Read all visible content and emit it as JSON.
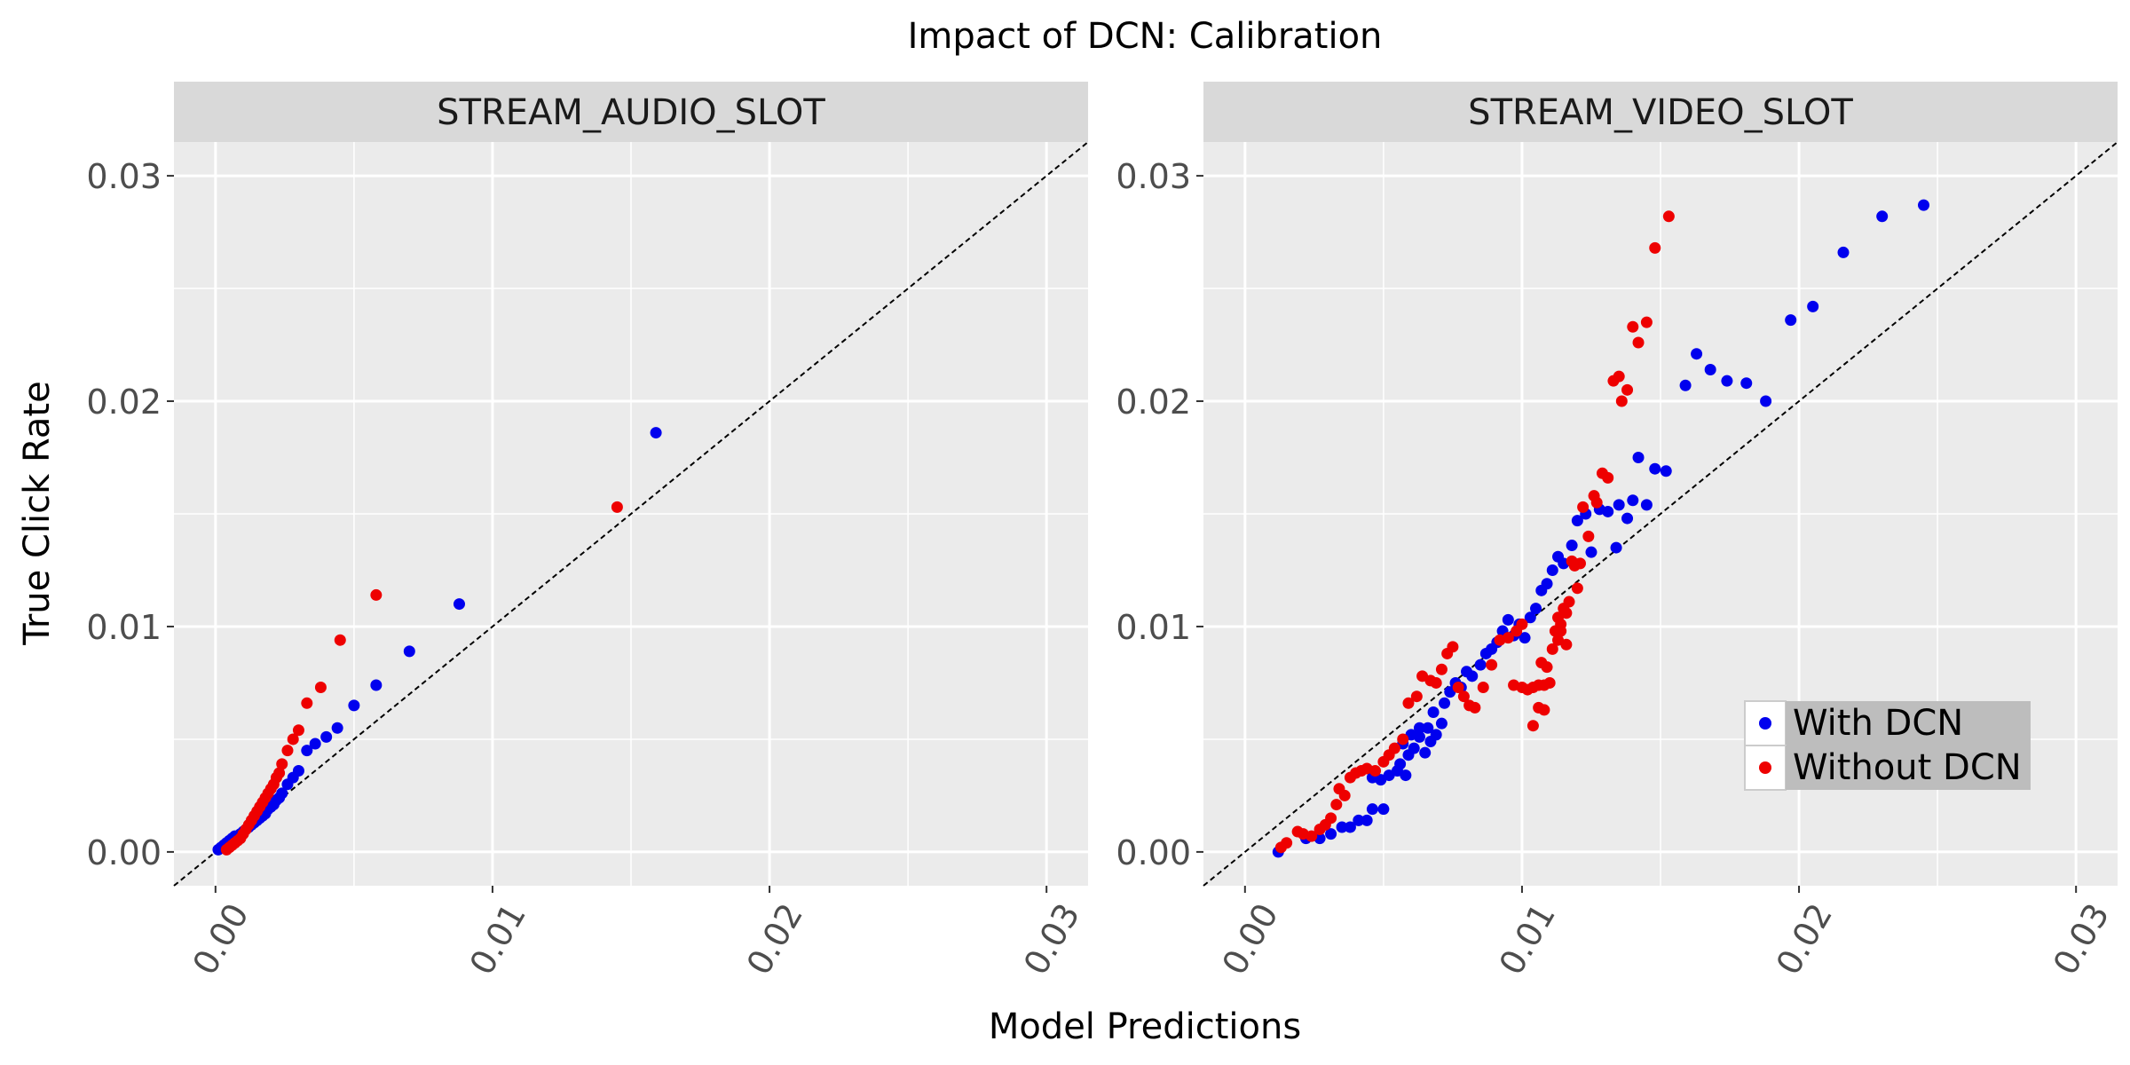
{
  "title": "Impact of DCN: Calibration",
  "xlabel": "Model Predictions",
  "ylabel": "True Click Rate",
  "colors": {
    "with": "#0000ee",
    "without": "#ee0000",
    "panel_bg": "#ebebeb",
    "strip_bg": "#d9d9d9",
    "grid": "#ffffff",
    "legend_bg": "#bdbdbd"
  },
  "legend": {
    "position": "bottom-right of right panel",
    "items": [
      "With DCN",
      "Without DCN"
    ]
  },
  "chart_data": [
    {
      "type": "scatter",
      "panel": "STREAM_AUDIO_SLOT",
      "xlim": [
        -0.0015,
        0.0315
      ],
      "ylim": [
        -0.0015,
        0.0315
      ],
      "x_ticks": [
        "0.00",
        "0.01",
        "0.02",
        "0.03"
      ],
      "y_ticks": [
        "0.00",
        "0.01",
        "0.02",
        "0.03"
      ],
      "reference_line": "y = x",
      "series": [
        {
          "name": "With DCN",
          "points": [
            [
              0.0001,
              0.0001
            ],
            [
              0.0002,
              0.0002
            ],
            [
              0.0003,
              0.0003
            ],
            [
              0.0004,
              0.0004
            ],
            [
              0.0005,
              0.0005
            ],
            [
              0.0006,
              0.0006
            ],
            [
              0.0007,
              0.0007
            ],
            [
              0.0008,
              0.0007
            ],
            [
              0.0009,
              0.0008
            ],
            [
              0.001,
              0.0009
            ],
            [
              0.0011,
              0.001
            ],
            [
              0.0012,
              0.0011
            ],
            [
              0.0013,
              0.0012
            ],
            [
              0.0014,
              0.0013
            ],
            [
              0.0015,
              0.0014
            ],
            [
              0.0016,
              0.0015
            ],
            [
              0.0017,
              0.0016
            ],
            [
              0.0018,
              0.0017
            ],
            [
              0.0019,
              0.0019
            ],
            [
              0.002,
              0.002
            ],
            [
              0.0021,
              0.0021
            ],
            [
              0.0022,
              0.0023
            ],
            [
              0.0023,
              0.0024
            ],
            [
              0.0024,
              0.0026
            ],
            [
              0.0026,
              0.003
            ],
            [
              0.0028,
              0.0033
            ],
            [
              0.003,
              0.0036
            ],
            [
              0.0033,
              0.0045
            ],
            [
              0.0036,
              0.0048
            ],
            [
              0.004,
              0.0051
            ],
            [
              0.0044,
              0.0055
            ],
            [
              0.005,
              0.0065
            ],
            [
              0.0058,
              0.0074
            ],
            [
              0.007,
              0.0089
            ],
            [
              0.0088,
              0.011
            ],
            [
              0.0159,
              0.0186
            ]
          ]
        },
        {
          "name": "Without DCN",
          "points": [
            [
              0.0004,
              0.0001
            ],
            [
              0.0005,
              0.0002
            ],
            [
              0.0006,
              0.0003
            ],
            [
              0.0007,
              0.0004
            ],
            [
              0.0008,
              0.0005
            ],
            [
              0.0009,
              0.0006
            ],
            [
              0.001,
              0.0008
            ],
            [
              0.0011,
              0.001
            ],
            [
              0.0012,
              0.0012
            ],
            [
              0.0013,
              0.0014
            ],
            [
              0.0014,
              0.0016
            ],
            [
              0.0015,
              0.0018
            ],
            [
              0.0016,
              0.002
            ],
            [
              0.0017,
              0.0022
            ],
            [
              0.0018,
              0.0024
            ],
            [
              0.0019,
              0.0026
            ],
            [
              0.002,
              0.0028
            ],
            [
              0.0021,
              0.003
            ],
            [
              0.0022,
              0.0033
            ],
            [
              0.0023,
              0.0035
            ],
            [
              0.0024,
              0.0039
            ],
            [
              0.0026,
              0.0045
            ],
            [
              0.0028,
              0.005
            ],
            [
              0.003,
              0.0054
            ],
            [
              0.0033,
              0.0066
            ],
            [
              0.0038,
              0.0073
            ],
            [
              0.0045,
              0.0094
            ],
            [
              0.0058,
              0.0114
            ],
            [
              0.0145,
              0.0153
            ]
          ]
        }
      ]
    },
    {
      "type": "scatter",
      "panel": "STREAM_VIDEO_SLOT",
      "xlim": [
        -0.0015,
        0.0315
      ],
      "ylim": [
        -0.0015,
        0.0315
      ],
      "x_ticks": [
        "0.00",
        "0.01",
        "0.02",
        "0.03"
      ],
      "y_ticks": [
        "0.00",
        "0.01",
        "0.02",
        "0.03"
      ],
      "reference_line": "y = x",
      "series": [
        {
          "name": "With DCN",
          "points": [
            [
              0.0012,
              0.0
            ],
            [
              0.0022,
              0.0006
            ],
            [
              0.0027,
              0.0006
            ],
            [
              0.0031,
              0.0008
            ],
            [
              0.0035,
              0.0011
            ],
            [
              0.0038,
              0.0011
            ],
            [
              0.0041,
              0.0014
            ],
            [
              0.0044,
              0.0014
            ],
            [
              0.0046,
              0.0019
            ],
            [
              0.005,
              0.0019
            ],
            [
              0.0046,
              0.0033
            ],
            [
              0.0049,
              0.0032
            ],
            [
              0.0052,
              0.0034
            ],
            [
              0.0055,
              0.0036
            ],
            [
              0.0058,
              0.0034
            ],
            [
              0.0056,
              0.0039
            ],
            [
              0.0059,
              0.0043
            ],
            [
              0.0057,
              0.0048
            ],
            [
              0.0061,
              0.0046
            ],
            [
              0.0063,
              0.0051
            ],
            [
              0.0065,
              0.0044
            ],
            [
              0.0067,
              0.0049
            ],
            [
              0.0069,
              0.0052
            ],
            [
              0.0071,
              0.0057
            ],
            [
              0.0066,
              0.0055
            ],
            [
              0.006,
              0.0052
            ],
            [
              0.0063,
              0.0055
            ],
            [
              0.0068,
              0.0062
            ],
            [
              0.0072,
              0.0066
            ],
            [
              0.0074,
              0.0071
            ],
            [
              0.0076,
              0.0075
            ],
            [
              0.0078,
              0.0073
            ],
            [
              0.008,
              0.008
            ],
            [
              0.0082,
              0.0078
            ],
            [
              0.0085,
              0.0083
            ],
            [
              0.0087,
              0.0088
            ],
            [
              0.0089,
              0.009
            ],
            [
              0.0091,
              0.0093
            ],
            [
              0.0093,
              0.0098
            ],
            [
              0.0095,
              0.0103
            ],
            [
              0.0097,
              0.0096
            ],
            [
              0.0099,
              0.0101
            ],
            [
              0.0101,
              0.0095
            ],
            [
              0.0103,
              0.0104
            ],
            [
              0.0105,
              0.0108
            ],
            [
              0.0107,
              0.0116
            ],
            [
              0.0109,
              0.0119
            ],
            [
              0.0111,
              0.0125
            ],
            [
              0.0113,
              0.0131
            ],
            [
              0.0115,
              0.0128
            ],
            [
              0.0118,
              0.0136
            ],
            [
              0.012,
              0.0147
            ],
            [
              0.0123,
              0.015
            ],
            [
              0.0125,
              0.0133
            ],
            [
              0.0128,
              0.0152
            ],
            [
              0.0131,
              0.0151
            ],
            [
              0.0134,
              0.0135
            ],
            [
              0.0135,
              0.0154
            ],
            [
              0.0138,
              0.0148
            ],
            [
              0.014,
              0.0156
            ],
            [
              0.0142,
              0.0175
            ],
            [
              0.0145,
              0.0154
            ],
            [
              0.0148,
              0.017
            ],
            [
              0.0152,
              0.0169
            ],
            [
              0.0159,
              0.0207
            ],
            [
              0.0163,
              0.0221
            ],
            [
              0.0168,
              0.0214
            ],
            [
              0.0174,
              0.0209
            ],
            [
              0.0181,
              0.0208
            ],
            [
              0.0188,
              0.02
            ],
            [
              0.0197,
              0.0236
            ],
            [
              0.0205,
              0.0242
            ],
            [
              0.0216,
              0.0266
            ],
            [
              0.023,
              0.0282
            ],
            [
              0.0245,
              0.0287
            ]
          ]
        },
        {
          "name": "Without DCN",
          "points": [
            [
              0.0013,
              0.0002
            ],
            [
              0.0015,
              0.0004
            ],
            [
              0.0019,
              0.0009
            ],
            [
              0.0021,
              0.0008
            ],
            [
              0.0024,
              0.0007
            ],
            [
              0.0027,
              0.001
            ],
            [
              0.0029,
              0.0012
            ],
            [
              0.0031,
              0.0015
            ],
            [
              0.0033,
              0.0021
            ],
            [
              0.0034,
              0.0028
            ],
            [
              0.0036,
              0.0025
            ],
            [
              0.0038,
              0.0033
            ],
            [
              0.004,
              0.0035
            ],
            [
              0.0042,
              0.0036
            ],
            [
              0.0044,
              0.0037
            ],
            [
              0.0047,
              0.0036
            ],
            [
              0.005,
              0.004
            ],
            [
              0.0052,
              0.0043
            ],
            [
              0.0054,
              0.0046
            ],
            [
              0.0057,
              0.005
            ],
            [
              0.0059,
              0.0066
            ],
            [
              0.0062,
              0.0069
            ],
            [
              0.0064,
              0.0078
            ],
            [
              0.0067,
              0.0076
            ],
            [
              0.0069,
              0.0075
            ],
            [
              0.0071,
              0.0081
            ],
            [
              0.0073,
              0.0088
            ],
            [
              0.0075,
              0.0091
            ],
            [
              0.0077,
              0.0073
            ],
            [
              0.0079,
              0.0069
            ],
            [
              0.0081,
              0.0065
            ],
            [
              0.0083,
              0.0064
            ],
            [
              0.0086,
              0.0073
            ],
            [
              0.0089,
              0.0083
            ],
            [
              0.0092,
              0.0094
            ],
            [
              0.0095,
              0.0095
            ],
            [
              0.0098,
              0.0098
            ],
            [
              0.01,
              0.0101
            ],
            [
              0.0097,
              0.0074
            ],
            [
              0.01,
              0.0073
            ],
            [
              0.0102,
              0.0072
            ],
            [
              0.0104,
              0.0073
            ],
            [
              0.0106,
              0.0074
            ],
            [
              0.0108,
              0.0074
            ],
            [
              0.011,
              0.0075
            ],
            [
              0.0104,
              0.0056
            ],
            [
              0.0106,
              0.0064
            ],
            [
              0.0108,
              0.0063
            ],
            [
              0.0107,
              0.0084
            ],
            [
              0.0109,
              0.0082
            ],
            [
              0.0111,
              0.009
            ],
            [
              0.0113,
              0.0094
            ],
            [
              0.0112,
              0.0098
            ],
            [
              0.0114,
              0.0101
            ],
            [
              0.0113,
              0.0104
            ],
            [
              0.0115,
              0.0108
            ],
            [
              0.0116,
              0.0106
            ],
            [
              0.0117,
              0.0111
            ],
            [
              0.0114,
              0.0098
            ],
            [
              0.0116,
              0.0092
            ],
            [
              0.0118,
              0.0129
            ],
            [
              0.0119,
              0.0127
            ],
            [
              0.012,
              0.0117
            ],
            [
              0.0121,
              0.0128
            ],
            [
              0.0122,
              0.0153
            ],
            [
              0.0124,
              0.014
            ],
            [
              0.0126,
              0.0158
            ],
            [
              0.0127,
              0.0155
            ],
            [
              0.0129,
              0.0168
            ],
            [
              0.0131,
              0.0166
            ],
            [
              0.0133,
              0.0209
            ],
            [
              0.0135,
              0.0211
            ],
            [
              0.0136,
              0.02
            ],
            [
              0.0138,
              0.0205
            ],
            [
              0.014,
              0.0233
            ],
            [
              0.0142,
              0.0226
            ],
            [
              0.0145,
              0.0235
            ],
            [
              0.0148,
              0.0268
            ],
            [
              0.0153,
              0.0282
            ]
          ]
        }
      ]
    }
  ]
}
